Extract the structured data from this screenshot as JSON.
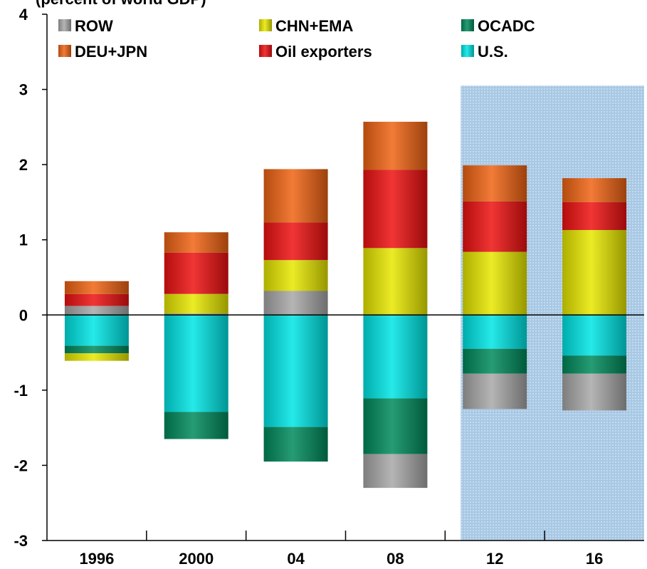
{
  "header_fragment": "(percent of world GDP)",
  "chart_data": {
    "type": "bar",
    "stacked": true,
    "categories": [
      "1996",
      "2000",
      "04",
      "08",
      "12",
      "16"
    ],
    "ylim": [
      -3,
      4
    ],
    "yticks": [
      "4",
      "3",
      "2",
      "1",
      "0",
      "-1",
      "-2",
      "-3"
    ],
    "projection_shading": {
      "from_category": "12",
      "to_category": "16",
      "color": "#a8c8e4"
    },
    "legend": [
      "ROW",
      "CHN+EMA",
      "OCADC",
      "DEU+JPN",
      "Oil exporters",
      "U.S."
    ],
    "legend_placement": "top",
    "series": [
      {
        "name": "U.S.",
        "color": "#00e5e5",
        "values": [
          -0.41,
          -1.29,
          -1.49,
          -1.11,
          -0.45,
          -0.54
        ]
      },
      {
        "name": "OCADC",
        "color": "#008a5c",
        "values": [
          -0.1,
          -0.36,
          -0.46,
          -0.74,
          -0.33,
          -0.24
        ]
      },
      {
        "name": "ROW",
        "color": "#a8a8a8",
        "values": [
          0.12,
          0.02,
          0.32,
          -0.45,
          -0.47,
          -0.49
        ]
      },
      {
        "name": "CHN+EMA",
        "color": "#e8e800",
        "values": [
          -0.1,
          0.26,
          0.41,
          0.89,
          0.84,
          1.13
        ]
      },
      {
        "name": "Oil exporters",
        "color": "#ee1111",
        "values": [
          0.16,
          0.55,
          0.5,
          1.04,
          0.67,
          0.37
        ]
      },
      {
        "name": "DEU+JPN",
        "color": "#f06414",
        "values": [
          0.17,
          0.27,
          0.71,
          0.64,
          0.48,
          0.32
        ]
      }
    ]
  }
}
